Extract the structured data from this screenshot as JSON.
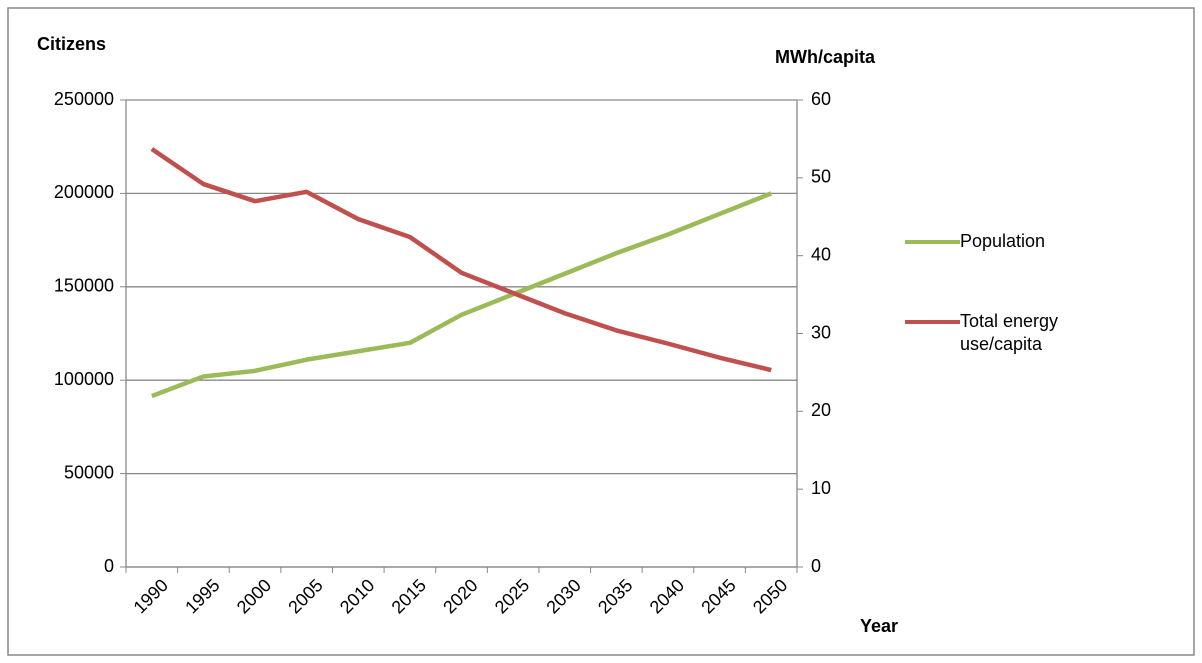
{
  "chart_data": {
    "type": "line",
    "y_label": "Citizens",
    "y2_label": "MWh/capita",
    "x_label": "Year",
    "categories": [
      "1990",
      "1995",
      "2000",
      "2005",
      "2010",
      "2015",
      "2020",
      "2025",
      "2030",
      "2035",
      "2040",
      "2045",
      "2050"
    ],
    "series": [
      {
        "name": "Population",
        "color": "#9bbb59",
        "values": [
          91500,
          102000,
          105000,
          111000,
          115500,
          120000,
          135000,
          146000,
          157000,
          168000,
          178000,
          189000,
          200000
        ]
      },
      {
        "name": "Total energy use/capita",
        "color": "#c0504d",
        "axis": "y2",
        "values": [
          53.7,
          49.2,
          47.0,
          48.2,
          44.7,
          42.4,
          37.8,
          35.2,
          32.6,
          30.4,
          28.7,
          26.9,
          25.3
        ]
      }
    ],
    "ylim": [
      0,
      250000
    ],
    "yticks": [
      0,
      50000,
      100000,
      150000,
      200000,
      250000
    ],
    "y2lim": [
      0,
      60
    ],
    "y2ticks": [
      0,
      10,
      20,
      30,
      40,
      50,
      60
    ],
    "grid": true,
    "legend": "right"
  }
}
